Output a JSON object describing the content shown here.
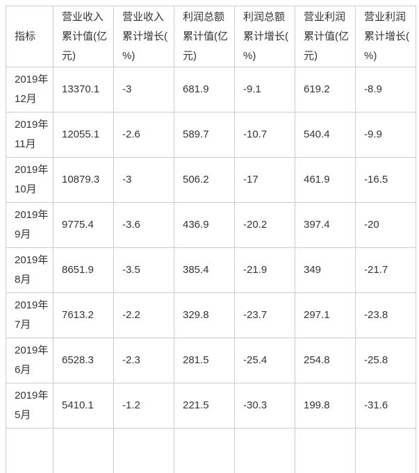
{
  "chart_data": {
    "type": "table",
    "columns": [
      "指标",
      "营业收入累计值(亿元)",
      "营业收入累计增长(%)",
      "利润总额累计值(亿元)",
      "利润总额累计增长(%)",
      "营业利润累计值(亿元)",
      "营业利润累计增长(%)"
    ],
    "rows": [
      [
        "2019年12月",
        "13370.1",
        "-3",
        "681.9",
        "-9.1",
        "619.2",
        "-8.9"
      ],
      [
        "2019年11月",
        "12055.1",
        "-2.6",
        "589.7",
        "-10.7",
        "540.4",
        "-9.9"
      ],
      [
        "2019年10月",
        "10879.3",
        "-3",
        "506.2",
        "-17",
        "461.9",
        "-16.5"
      ],
      [
        "2019年9月",
        "9775.4",
        "-3.6",
        "436.9",
        "-20.2",
        "397.4",
        "-20"
      ],
      [
        "2019年8月",
        "8651.9",
        "-3.5",
        "385.4",
        "-21.9",
        "349",
        "-21.7"
      ],
      [
        "2019年7月",
        "7613.2",
        "-2.2",
        "329.8",
        "-23.7",
        "297.1",
        "-23.8"
      ],
      [
        "2019年6月",
        "6528.3",
        "-2.3",
        "281.5",
        "-25.4",
        "254.8",
        "-25.8"
      ],
      [
        "2019年5月",
        "5410.1",
        "-1.2",
        "221.5",
        "-30.3",
        "199.8",
        "-31.6"
      ]
    ]
  },
  "colors": {
    "border": "#cccccc",
    "text": "#333333",
    "background": "#ffffff"
  }
}
